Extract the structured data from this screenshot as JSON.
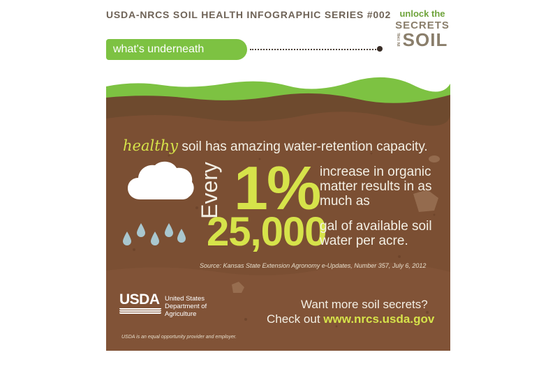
{
  "header": {
    "series_title": "USDA-NRCS SOIL HEALTH INFOGRAPHIC SERIES #002",
    "tab_label": "what's underneath"
  },
  "logo": {
    "line1": "unlock the",
    "line2": "SECRETS",
    "line3": "SOIL",
    "tiny": "IN THE"
  },
  "infographic": {
    "healthy_word": "healthy",
    "headline_rest": "soil has amazing water-retention capacity.",
    "every": "Every",
    "percent": "1%",
    "desc1": "increase in organic matter results in as much as",
    "gallons": "25,000",
    "desc2": "gal of available soil water per acre.",
    "source": "Source: Kansas State Extension Agronomy e-Updates, Number 357, July 6, 2012"
  },
  "footer": {
    "usda_word": "USDA",
    "usda_dept": [
      "United States",
      "Department of",
      "Agriculture"
    ],
    "cta_line1": "Want more soil secrets?",
    "cta_line2_prefix": "Check out",
    "cta_url": "www.nrcs.usda.gov",
    "equal_opportunity": "USDA is an equal opportunity provider and employer."
  },
  "colors": {
    "grass_green": "#7dc242",
    "soil_brown": "#7b4f33",
    "accent_yellow": "#d6e34a",
    "text_light": "#f3efe4"
  },
  "icons": [
    "cloud-icon",
    "raindrop-icon",
    "usda-logo"
  ]
}
